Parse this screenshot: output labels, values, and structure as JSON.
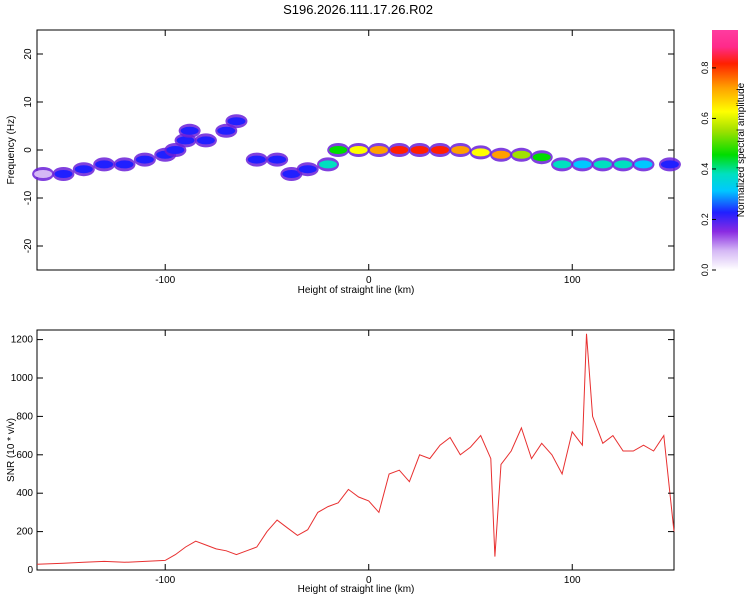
{
  "title": "S196.2026.111.17.26.R02",
  "chart_data": [
    {
      "type": "heatmap",
      "name": "spectrogram",
      "xlabel": "Height of straight line (km)",
      "ylabel": "Frequency (Hz)",
      "xlim": [
        -163,
        150
      ],
      "ylim": [
        -25,
        25
      ],
      "xticks": [
        -100,
        0,
        100
      ],
      "yticks": [
        -20,
        -10,
        0,
        10,
        20
      ],
      "colorbar": {
        "label": "Normalized spectral amplitude",
        "range": [
          0.0,
          0.95
        ],
        "ticks": [
          0.0,
          0.2,
          0.4,
          0.6,
          0.8
        ],
        "tick_labels": [
          "0.0",
          "0.2",
          "0.4",
          "0.6",
          "0.8"
        ]
      },
      "ridge": [
        {
          "x": -160,
          "y": -5,
          "a": 0.15
        },
        {
          "x": -150,
          "y": -5,
          "a": 0.25
        },
        {
          "x": -140,
          "y": -4,
          "a": 0.25
        },
        {
          "x": -130,
          "y": -3,
          "a": 0.3
        },
        {
          "x": -120,
          "y": -3,
          "a": 0.3
        },
        {
          "x": -110,
          "y": -2,
          "a": 0.3
        },
        {
          "x": -100,
          "y": -1,
          "a": 0.3
        },
        {
          "x": -95,
          "y": 0,
          "a": 0.25
        },
        {
          "x": -90,
          "y": 2,
          "a": 0.25
        },
        {
          "x": -88,
          "y": 4,
          "a": 0.3
        },
        {
          "x": -80,
          "y": 2,
          "a": 0.25
        },
        {
          "x": -70,
          "y": 4,
          "a": 0.25
        },
        {
          "x": -65,
          "y": 6,
          "a": 0.25
        },
        {
          "x": -55,
          "y": -2,
          "a": 0.25
        },
        {
          "x": -45,
          "y": -2,
          "a": 0.25
        },
        {
          "x": -38,
          "y": -5,
          "a": 0.25
        },
        {
          "x": -30,
          "y": -4,
          "a": 0.3
        },
        {
          "x": -20,
          "y": -3,
          "a": 0.4
        },
        {
          "x": -15,
          "y": 0,
          "a": 0.55
        },
        {
          "x": -5,
          "y": 0,
          "a": 0.65
        },
        {
          "x": 5,
          "y": 0,
          "a": 0.75
        },
        {
          "x": 15,
          "y": 0,
          "a": 0.9
        },
        {
          "x": 25,
          "y": 0,
          "a": 0.9
        },
        {
          "x": 35,
          "y": 0,
          "a": 0.85
        },
        {
          "x": 45,
          "y": 0,
          "a": 0.8
        },
        {
          "x": 55,
          "y": -0.5,
          "a": 0.7
        },
        {
          "x": 65,
          "y": -1,
          "a": 0.75
        },
        {
          "x": 75,
          "y": -1,
          "a": 0.6
        },
        {
          "x": 85,
          "y": -1.5,
          "a": 0.5
        },
        {
          "x": 95,
          "y": -3,
          "a": 0.4
        },
        {
          "x": 105,
          "y": -3,
          "a": 0.35
        },
        {
          "x": 115,
          "y": -3,
          "a": 0.45
        },
        {
          "x": 125,
          "y": -3,
          "a": 0.4
        },
        {
          "x": 135,
          "y": -3,
          "a": 0.35
        },
        {
          "x": 148,
          "y": -3,
          "a": 0.3
        }
      ]
    },
    {
      "type": "line",
      "name": "snr",
      "xlabel": "Height of straight line (km)",
      "ylabel": "SNR (10 * v/v)",
      "xlim": [
        -163,
        150
      ],
      "ylim": [
        0,
        1250
      ],
      "xticks": [
        -100,
        0,
        100
      ],
      "yticks": [
        0,
        200,
        400,
        600,
        800,
        1000,
        1200
      ],
      "color": "#e83030",
      "x": [
        -163,
        -150,
        -140,
        -130,
        -120,
        -110,
        -100,
        -95,
        -90,
        -85,
        -80,
        -75,
        -70,
        -65,
        -60,
        -55,
        -50,
        -45,
        -40,
        -35,
        -30,
        -25,
        -20,
        -15,
        -10,
        -5,
        0,
        5,
        10,
        15,
        20,
        25,
        30,
        35,
        40,
        45,
        50,
        55,
        60,
        62,
        65,
        70,
        75,
        80,
        85,
        90,
        95,
        100,
        105,
        107,
        110,
        115,
        120,
        125,
        130,
        135,
        140,
        145,
        150
      ],
      "y": [
        30,
        35,
        40,
        45,
        40,
        45,
        50,
        80,
        120,
        150,
        130,
        110,
        100,
        80,
        100,
        120,
        200,
        260,
        220,
        180,
        210,
        300,
        330,
        350,
        420,
        380,
        360,
        300,
        500,
        520,
        460,
        600,
        580,
        650,
        690,
        600,
        640,
        700,
        580,
        70,
        550,
        620,
        740,
        580,
        660,
        600,
        500,
        720,
        650,
        1230,
        800,
        660,
        700,
        620,
        620,
        650,
        620,
        700,
        200
      ]
    }
  ]
}
